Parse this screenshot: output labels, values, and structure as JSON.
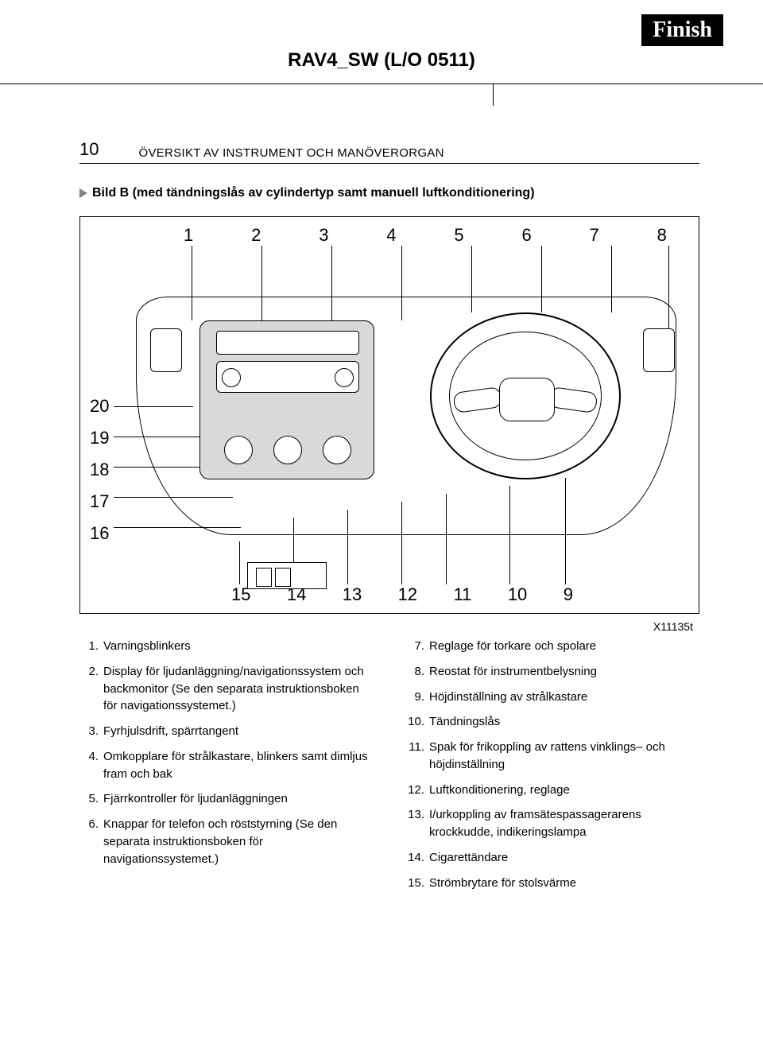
{
  "badge": "Finish",
  "doc_id": "RAV4_SW (L/O 0511)",
  "page_number": "10",
  "section_title": "ÖVERSIKT AV INSTRUMENT OCH MANÖVERORGAN",
  "subtitle": "Bild B (med tändningslås av cylindertyp samt manuell luftkonditionering)",
  "figure": {
    "ref_id": "X11135t",
    "top_callouts": [
      "1",
      "2",
      "3",
      "4",
      "5",
      "6",
      "7",
      "8"
    ],
    "left_callouts": [
      "20",
      "19",
      "18",
      "17",
      "16"
    ],
    "bottom_callouts": [
      "15",
      "14",
      "13",
      "12",
      "11",
      "10",
      "9"
    ],
    "colors": {
      "outline": "#000000",
      "fill_gray": "#d9d9d9",
      "background": "#ffffff"
    }
  },
  "legend_left": [
    {
      "n": "1.",
      "t": "Varningsblinkers"
    },
    {
      "n": "2.",
      "t": "Display för ljudanläggning/navigationssystem och backmonitor (Se den separata instruktionsboken för navigationssystemet.)"
    },
    {
      "n": "3.",
      "t": "Fyrhjulsdrift, spärrtangent"
    },
    {
      "n": "4.",
      "t": "Omkopplare för strålkastare, blinkers samt dimljus fram och bak"
    },
    {
      "n": "5.",
      "t": "Fjärrkontroller för ljudanläggningen"
    },
    {
      "n": "6.",
      "t": "Knappar för telefon och röststyrning (Se den separata instruktionsboken för navigationssystemet.)"
    }
  ],
  "legend_right": [
    {
      "n": "7.",
      "t": "Reglage för torkare och spolare"
    },
    {
      "n": "8.",
      "t": "Reostat för instrumentbelysning"
    },
    {
      "n": "9.",
      "t": "Höjdinställning av strålkastare"
    },
    {
      "n": "10.",
      "t": "Tändningslås"
    },
    {
      "n": "11.",
      "t": "Spak för frikoppling av rattens vinklings– och höjdinställning"
    },
    {
      "n": "12.",
      "t": "Luftkonditionering, reglage"
    },
    {
      "n": "13.",
      "t": "I/urkoppling av framsätespassagerarens krockkudde, indikeringslampa"
    },
    {
      "n": "14.",
      "t": "Cigarettändare"
    },
    {
      "n": "15.",
      "t": "Strömbrytare för stolsvärme"
    }
  ]
}
